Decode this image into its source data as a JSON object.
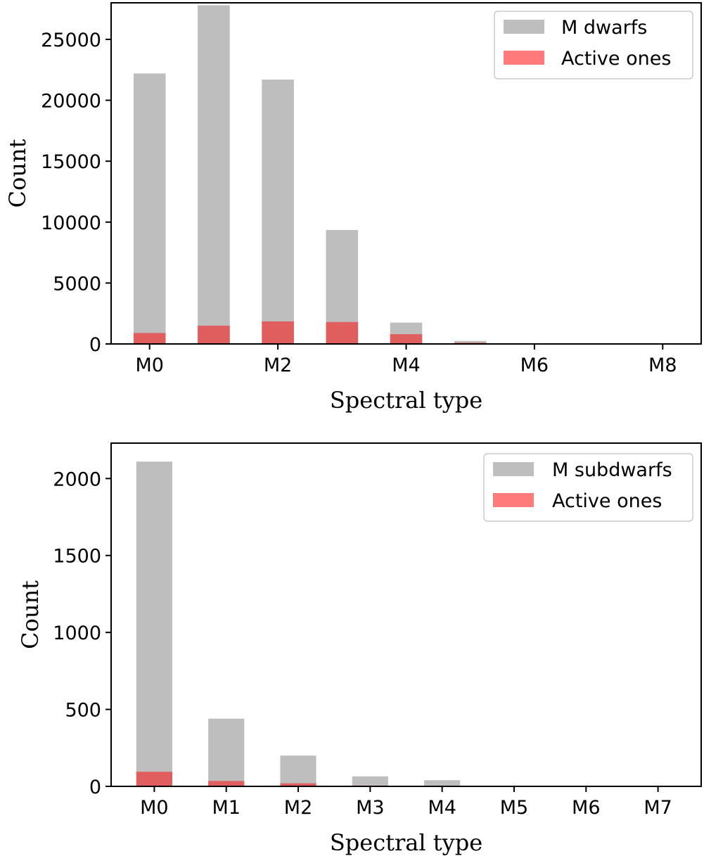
{
  "chart_data": [
    {
      "type": "bar",
      "xlabel": "Spectral type",
      "ylabel": "Count",
      "xlim": [
        -0.6,
        8.6
      ],
      "ylim": [
        0,
        28000
      ],
      "bar_width": 0.5,
      "x_ticks": [
        {
          "x": 0,
          "label": "M0"
        },
        {
          "x": 2,
          "label": "M2"
        },
        {
          "x": 4,
          "label": "M4"
        },
        {
          "x": 6,
          "label": "M6"
        },
        {
          "x": 8,
          "label": "M8"
        }
      ],
      "y_ticks": [
        {
          "value": 0,
          "label": "0"
        },
        {
          "value": 5000,
          "label": "5000"
        },
        {
          "value": 10000,
          "label": "10000"
        },
        {
          "value": 15000,
          "label": "15000"
        },
        {
          "value": 20000,
          "label": "20000"
        },
        {
          "value": 25000,
          "label": "25000"
        }
      ],
      "grid": false,
      "legend_position": "top-right",
      "series": [
        {
          "name": "M dwarfs",
          "color": "#bebebe",
          "x": [
            0,
            1,
            2,
            3,
            4,
            5,
            6,
            7,
            8
          ],
          "values": [
            22200,
            27800,
            21700,
            9350,
            1750,
            250,
            0,
            0,
            0
          ]
        },
        {
          "name": "Active ones",
          "color": "#ff7b7b",
          "overlap_color": "#e15e5e",
          "x": [
            0,
            1,
            2,
            3,
            4,
            5,
            6,
            7,
            8
          ],
          "values": [
            900,
            1500,
            1850,
            1800,
            800,
            100,
            0,
            0,
            0
          ]
        }
      ]
    },
    {
      "type": "bar",
      "xlabel": "Spectral type",
      "ylabel": "Count",
      "xlim": [
        -0.6,
        7.6
      ],
      "ylim": [
        0,
        2230
      ],
      "bar_width": 0.5,
      "x_ticks": [
        {
          "x": 0,
          "label": "M0"
        },
        {
          "x": 1,
          "label": "M1"
        },
        {
          "x": 2,
          "label": "M2"
        },
        {
          "x": 3,
          "label": "M3"
        },
        {
          "x": 4,
          "label": "M4"
        },
        {
          "x": 5,
          "label": "M5"
        },
        {
          "x": 6,
          "label": "M6"
        },
        {
          "x": 7,
          "label": "M7"
        }
      ],
      "y_ticks": [
        {
          "value": 0,
          "label": "0"
        },
        {
          "value": 500,
          "label": "500"
        },
        {
          "value": 1000,
          "label": "1000"
        },
        {
          "value": 1500,
          "label": "1500"
        },
        {
          "value": 2000,
          "label": "2000"
        }
      ],
      "grid": false,
      "legend_position": "top-right",
      "series": [
        {
          "name": "M subdwarfs",
          "color": "#bebebe",
          "x": [
            0,
            1,
            2,
            3,
            4,
            5,
            6,
            7
          ],
          "values": [
            2110,
            440,
            200,
            65,
            40,
            0,
            0,
            0
          ]
        },
        {
          "name": "Active ones",
          "color": "#ff7b7b",
          "overlap_color": "#e15e5e",
          "x": [
            0,
            1,
            2,
            3,
            4,
            5,
            6,
            7
          ],
          "values": [
            95,
            35,
            20,
            5,
            0,
            0,
            0,
            0
          ]
        }
      ]
    }
  ]
}
